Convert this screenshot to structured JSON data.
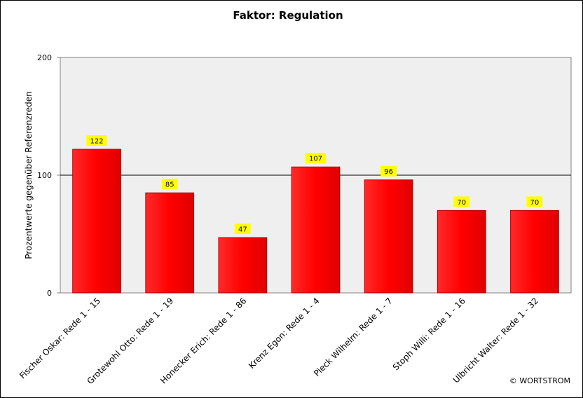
{
  "chart_data": {
    "type": "bar",
    "title": "Faktor: Regulation",
    "ylabel": "Prozentwerte  gegenüber Referenzreden",
    "xlabel": "",
    "categories": [
      "Fischer Oskar: Rede 1 - 15",
      "Grotewohl Otto: Rede 1 - 19",
      "Honecker Erich: Rede 1 - 86",
      "Krenz Egon: Rede 1 - 4",
      "Pieck Wilhelm: Rede 1 - 7",
      "Stoph Willi: Rede 1 - 16",
      "Ulbricht Walter: Rede 1 - 32"
    ],
    "values": [
      122,
      85,
      47,
      107,
      96,
      70,
      70
    ],
    "ylim": [
      0,
      200
    ],
    "yticks": [
      "0",
      "100",
      "200"
    ],
    "reference_line": 100,
    "grid": false,
    "legend": "none",
    "colors": {
      "bar": "#ff0000",
      "bar_edge": "#b00000",
      "plot_background": "#efefef",
      "label_background": "#ffff00"
    },
    "copyright": "© WORTSTROM"
  }
}
